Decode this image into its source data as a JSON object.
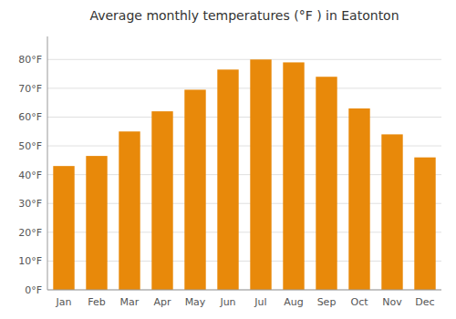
{
  "chart_data": {
    "type": "bar",
    "title": "Average monthly temperatures (°F ) in Eatonton",
    "categories": [
      "Jan",
      "Feb",
      "Mar",
      "Apr",
      "May",
      "Jun",
      "Jul",
      "Aug",
      "Sep",
      "Oct",
      "Nov",
      "Dec"
    ],
    "values": [
      43,
      46.5,
      55,
      62,
      69.5,
      76.5,
      80,
      79,
      74,
      63,
      54,
      46
    ],
    "color": "#E8890A",
    "ylim": [
      0,
      88
    ],
    "yticks": [
      {
        "value": 0,
        "label": "0°F"
      },
      {
        "value": 10,
        "label": "10°F"
      },
      {
        "value": 20,
        "label": "20°F"
      },
      {
        "value": 30,
        "label": "30°F"
      },
      {
        "value": 40,
        "label": "40°F"
      },
      {
        "value": 50,
        "label": "50°F"
      },
      {
        "value": 60,
        "label": "60°F"
      },
      {
        "value": 70,
        "label": "70°F"
      },
      {
        "value": 80,
        "label": "80°F"
      }
    ],
    "grid": true
  }
}
